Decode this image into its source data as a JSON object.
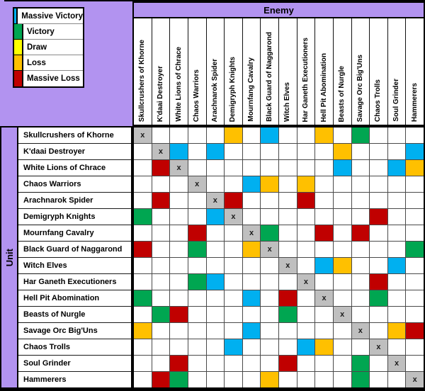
{
  "labels": {
    "enemy_axis": "Enemy",
    "unit_axis": "Unit"
  },
  "legend": [
    {
      "code": "MV",
      "label": "Massive Victory"
    },
    {
      "code": "V",
      "label": "Victory"
    },
    {
      "code": "D",
      "label": "Draw"
    },
    {
      "code": "L",
      "label": "Loss"
    },
    {
      "code": "ML",
      "label": "Massive Loss"
    }
  ],
  "colors": {
    "MV": "#00B0F0",
    "V": "#00A651",
    "D": "#FFFF00",
    "L": "#FFC000",
    "ML": "#C00000",
    "diagonal": "#BFBFBF",
    "empty": "#FFFFFF",
    "background": "#B293F0"
  },
  "diagonal_marker": "x",
  "chart_data": {
    "type": "heatmap",
    "title": "Unit vs Enemy matchup matrix",
    "x_axis_label": "Enemy",
    "y_axis_label": "Unit",
    "legend_entries": [
      "Massive Victory",
      "Victory",
      "Draw",
      "Loss",
      "Massive Loss"
    ],
    "legend_position": "top-left",
    "cell_codes": {
      "MV": "Massive Victory",
      "V": "Victory",
      "D": "Draw",
      "L": "Loss",
      "ML": "Massive Loss",
      "X": "same unit (diagonal)",
      "": "blank"
    },
    "categories": [
      "Skullcrushers of Khorne",
      "K'daai Destroyer",
      "White Lions of Chrace",
      "Chaos Warriors",
      "Arachnarok Spider",
      "Demigryph Knights",
      "Mournfang Cavalry",
      "Black Guard of Naggarond",
      "Witch Elves",
      "Har Ganeth Executioners",
      "Hell Pit Abomination",
      "Beasts of Nurgle",
      "Savage Orc Big'Uns",
      "Chaos Trolls",
      "Soul Grinder",
      "Hammerers"
    ],
    "matrix": [
      [
        "X",
        "",
        "",
        "",
        "",
        "L",
        "",
        "MV",
        "",
        "",
        "L",
        "",
        "V",
        "",
        "",
        ""
      ],
      [
        "",
        "X",
        "MV",
        "",
        "MV",
        "",
        "",
        "",
        "",
        "",
        "",
        "L",
        "",
        "",
        "",
        "MV"
      ],
      [
        "",
        "ML",
        "X",
        "",
        "",
        "",
        "",
        "",
        "",
        "",
        "",
        "MV",
        "",
        "",
        "MV",
        "L"
      ],
      [
        "",
        "",
        "",
        "X",
        "",
        "",
        "MV",
        "L",
        "",
        "L",
        "",
        "",
        "",
        "",
        "",
        ""
      ],
      [
        "",
        "ML",
        "",
        "",
        "X",
        "ML",
        "",
        "",
        "",
        "ML",
        "",
        "",
        "",
        "",
        "",
        ""
      ],
      [
        "V",
        "",
        "",
        "",
        "MV",
        "X",
        "",
        "",
        "",
        "",
        "",
        "",
        "",
        "ML",
        "",
        ""
      ],
      [
        "",
        "",
        "",
        "ML",
        "",
        "",
        "X",
        "V",
        "",
        "",
        "ML",
        "",
        "ML",
        "",
        "",
        ""
      ],
      [
        "ML",
        "",
        "",
        "V",
        "",
        "",
        "L",
        "X",
        "",
        "",
        "",
        "",
        "",
        "",
        "",
        "V"
      ],
      [
        "",
        "",
        "",
        "",
        "",
        "",
        "",
        "",
        "X",
        "",
        "MV",
        "L",
        "",
        "",
        "MV",
        ""
      ],
      [
        "",
        "",
        "",
        "V",
        "MV",
        "",
        "",
        "",
        "",
        "X",
        "",
        "",
        "",
        "ML",
        "",
        ""
      ],
      [
        "V",
        "",
        "",
        "",
        "",
        "",
        "MV",
        "",
        "ML",
        "",
        "X",
        "",
        "",
        "V",
        "",
        ""
      ],
      [
        "",
        "V",
        "ML",
        "",
        "",
        "",
        "",
        "",
        "V",
        "",
        "",
        "X",
        "",
        "",
        "",
        ""
      ],
      [
        "L",
        "",
        "",
        "",
        "",
        "",
        "MV",
        "",
        "",
        "",
        "",
        "",
        "X",
        "",
        "L",
        "ML"
      ],
      [
        "",
        "",
        "",
        "",
        "",
        "MV",
        "",
        "",
        "",
        "MV",
        "L",
        "",
        "",
        "X",
        "",
        ""
      ],
      [
        "",
        "",
        "ML",
        "",
        "",
        "",
        "",
        "",
        "ML",
        "",
        "",
        "",
        "V",
        "",
        "X",
        ""
      ],
      [
        "",
        "ML",
        "V",
        "",
        "",
        "",
        "",
        "L",
        "",
        "",
        "",
        "",
        "V",
        "",
        "",
        "X"
      ]
    ]
  }
}
